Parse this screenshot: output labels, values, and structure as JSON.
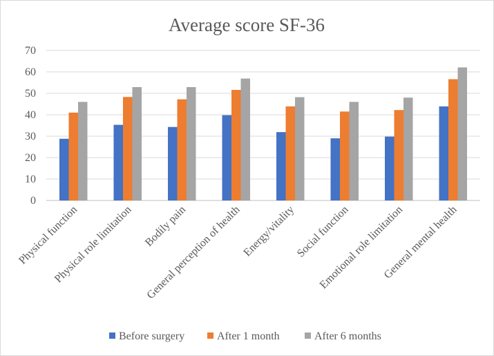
{
  "chart_data": {
    "type": "bar",
    "title": "Average score SF-36",
    "xlabel": "",
    "ylabel": "",
    "ylim": [
      0,
      70
    ],
    "yticks": [
      0,
      10,
      20,
      30,
      40,
      50,
      60,
      70
    ],
    "grid": true,
    "legend_position": "bottom",
    "categories": [
      "Physical function",
      "Physical role limitation",
      "Bodily pain",
      "General perception of health",
      "Energy/vitality",
      "Social function",
      "Emotional role limitation",
      "General mental health"
    ],
    "series": [
      {
        "name": "Before surgery",
        "color": "#4472c4",
        "values": [
          28.8,
          35.3,
          34.3,
          39.8,
          31.9,
          29.0,
          29.8,
          43.9
        ]
      },
      {
        "name": "After 1 month",
        "color": "#ed7d31",
        "values": [
          41.0,
          48.3,
          47.2,
          51.6,
          43.9,
          41.5,
          42.2,
          56.6
        ]
      },
      {
        "name": "After 6 months",
        "color": "#a5a5a5",
        "values": [
          46.0,
          52.9,
          52.9,
          56.9,
          48.2,
          46.0,
          48.0,
          62.1
        ]
      }
    ]
  }
}
